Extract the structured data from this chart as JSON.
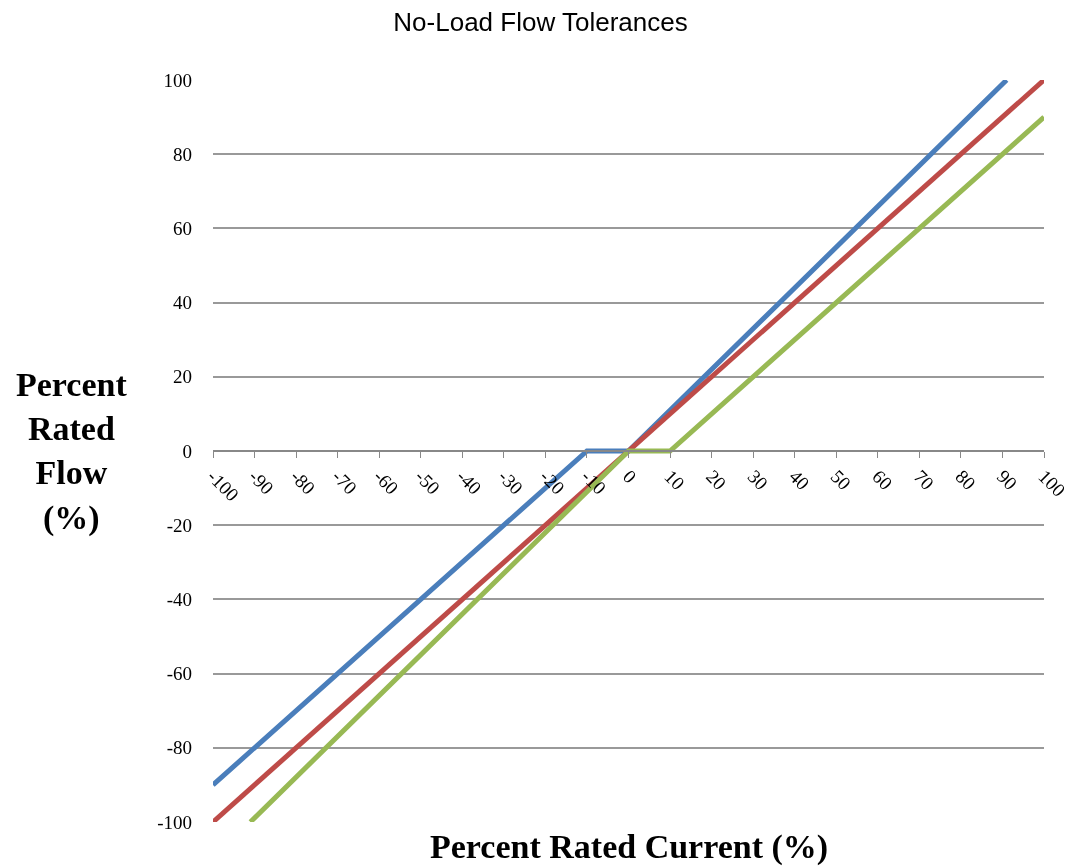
{
  "chart_data": {
    "type": "line",
    "title": "No-Load Flow Tolerances",
    "xlabel": "Percent Rated Current (%)",
    "ylabel": "Percent Rated Flow (%)",
    "series": [
      {
        "color": "#4a7ebb",
        "x": [
          -100,
          -10,
          0,
          91
        ],
        "values": [
          -90,
          0,
          0,
          100
        ]
      },
      {
        "color": "#be4b48",
        "x": [
          -100,
          100
        ],
        "values": [
          -100,
          100
        ]
      },
      {
        "color": "#98b954",
        "x": [
          -91,
          0,
          10,
          100
        ],
        "values": [
          -100,
          0,
          0,
          90
        ]
      }
    ],
    "xlim": [
      -100,
      100
    ],
    "xticks": [
      -100,
      -90,
      -80,
      -70,
      -60,
      -50,
      -40,
      -30,
      -20,
      -10,
      0,
      10,
      20,
      30,
      40,
      50,
      60,
      70,
      80,
      90,
      100
    ],
    "ylim": [
      -100,
      100
    ],
    "yticks": [
      -100,
      -80,
      -60,
      -40,
      -20,
      0,
      20,
      40,
      60,
      80,
      100
    ],
    "grid": "y",
    "marker": "none",
    "line_style": "solid"
  }
}
